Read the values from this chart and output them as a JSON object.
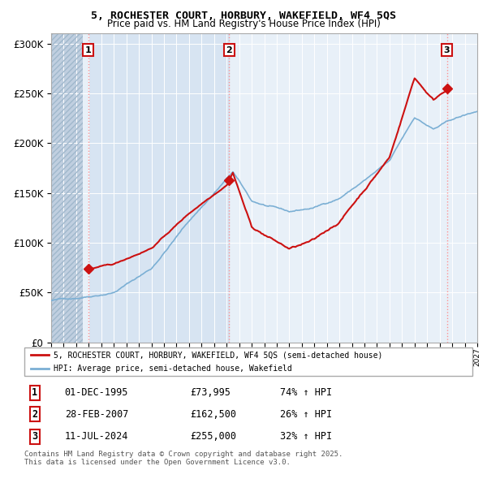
{
  "title": "5, ROCHESTER COURT, HORBURY, WAKEFIELD, WF4 5QS",
  "subtitle": "Price paid vs. HM Land Registry's House Price Index (HPI)",
  "sale_info": [
    {
      "num": "1",
      "date": "01-DEC-1995",
      "price": "£73,995",
      "hpi": "74% ↑ HPI"
    },
    {
      "num": "2",
      "date": "28-FEB-2007",
      "price": "£162,500",
      "hpi": "26% ↑ HPI"
    },
    {
      "num": "3",
      "date": "11-JUL-2024",
      "price": "£255,000",
      "hpi": "32% ↑ HPI"
    }
  ],
  "sale_prices": [
    73995,
    162500,
    255000
  ],
  "legend_line1": "5, ROCHESTER COURT, HORBURY, WAKEFIELD, WF4 5QS (semi-detached house)",
  "legend_line2": "HPI: Average price, semi-detached house, Wakefield",
  "footer": "Contains HM Land Registry data © Crown copyright and database right 2025.\nThis data is licensed under the Open Government Licence v3.0.",
  "hpi_color": "#7bafd4",
  "price_color": "#cc1111",
  "dashed_line_color": "#ff8888",
  "bg_main": "#e8f0f8",
  "bg_hatch_color": "#c0cfe0",
  "bg_shaded": "#d0e0f0",
  "ylim": [
    0,
    310000
  ],
  "yticks": [
    0,
    50000,
    100000,
    150000,
    200000,
    250000,
    300000
  ],
  "xmin": 1993,
  "xmax": 2027
}
